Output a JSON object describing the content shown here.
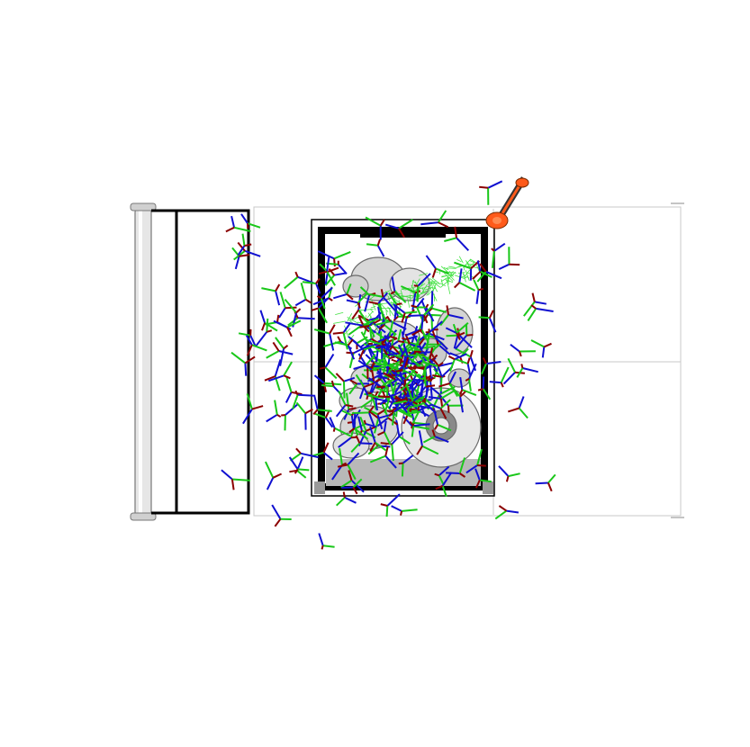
{
  "viewport": {
    "background": "#ffffff"
  },
  "colors": {
    "axis_x": "#8b0000",
    "axis_y": "#19c719",
    "axis_z": "#1010d0",
    "frame": "#000000",
    "panel_line": "#c8c8c8",
    "rail": "#d9d9d9",
    "parts": "#d8d8d8",
    "parts_shadow": "#8a8a8a",
    "tray_floor": "#b8b8b8",
    "gripper": "#ff5a1a",
    "gripper_shaft": "#333333",
    "mesh": "#22dd22"
  },
  "icons": {
    "scene": "3d-viewport",
    "markers": "pose-axis-triad",
    "tool": "robot-gripper"
  },
  "marker_count": 300
}
